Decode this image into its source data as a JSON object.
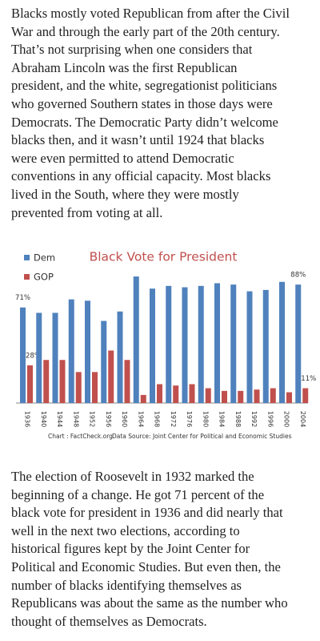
{
  "paragraphs": [
    [
      "Blacks mostly voted Republican from after the Civil",
      "War and through the early part of the 20th century.",
      "That’s not surprising when one considers that",
      "Abraham Lincoln was the first Republican",
      "president, and the white, segregationist politicians",
      "who governed Southern states in those days were",
      "Democrats. The Democratic Party didn’t welcome",
      "blacks then, and it wasn’t until 1924 that blacks",
      "were even permitted to attend Democratic",
      "conventions in any official capacity. Most blacks",
      "lived in the South, where they were mostly",
      "prevented from voting at all."
    ],
    [
      "The election of Roosevelt in 1932 marked the",
      "beginning of a change. He got 71 percent of the",
      "black vote for president in 1936 and did nearly that",
      "well in the next two elections, according to",
      "historical figures kept by the Joint Center for",
      "Political and Economic Studies. But even then, the",
      "number of blacks identifying themselves as",
      "Republicans was about the same as the number who",
      "thought of themselves as Democrats."
    ]
  ],
  "chart_data": {
    "type": "bar",
    "title": "Black Vote for President",
    "title_color": "#c0504d",
    "notes": [
      "Chart : FactCheck.org",
      "Data Source:  Joint Center for Political and Economic Studies"
    ],
    "categories": [
      "1936",
      "1940",
      "1944",
      "1948",
      "1952",
      "1956",
      "1960",
      "1964",
      "1968",
      "1972",
      "1976",
      "1980",
      "1984",
      "1988",
      "1992",
      "1996",
      "2000",
      "2004"
    ],
    "series": [
      {
        "name": "Dem",
        "color": "#4f81bd",
        "values": [
          71,
          67,
          67,
          77,
          76,
          61,
          68,
          94,
          85,
          87,
          86,
          87,
          89,
          88,
          83,
          84,
          90,
          88
        ],
        "value_labels": [
          "71%",
          null,
          null,
          null,
          null,
          null,
          null,
          null,
          null,
          null,
          null,
          null,
          null,
          null,
          null,
          null,
          null,
          "88%"
        ]
      },
      {
        "name": "GOP",
        "color": "#c0504d",
        "values": [
          28,
          32,
          32,
          23,
          23,
          39,
          32,
          6,
          14,
          13,
          14,
          11,
          9,
          9,
          10,
          11,
          8,
          11
        ],
        "value_labels": [
          "28%",
          null,
          null,
          null,
          null,
          null,
          null,
          null,
          null,
          null,
          null,
          null,
          null,
          null,
          null,
          null,
          null,
          "11%"
        ]
      }
    ],
    "ylim": [
      0,
      100
    ],
    "legend": "top-left"
  }
}
